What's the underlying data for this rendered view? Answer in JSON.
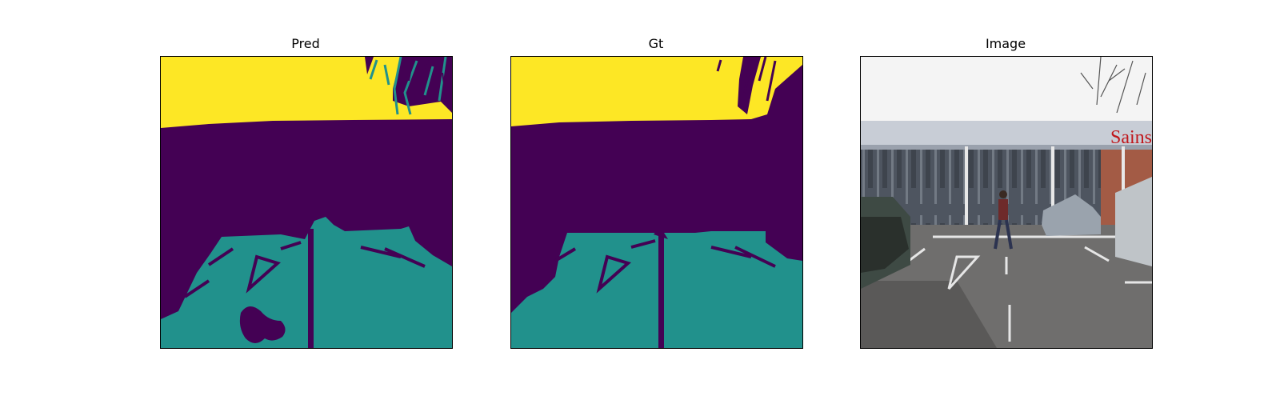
{
  "figure": {
    "panels": [
      {
        "title": "Pred"
      },
      {
        "title": "Gt"
      },
      {
        "title": "Image"
      }
    ],
    "colors": {
      "class_sky": "#fde725",
      "class_background": "#440154",
      "class_road": "#21918c"
    },
    "image_sign_text": "Sainsb"
  }
}
